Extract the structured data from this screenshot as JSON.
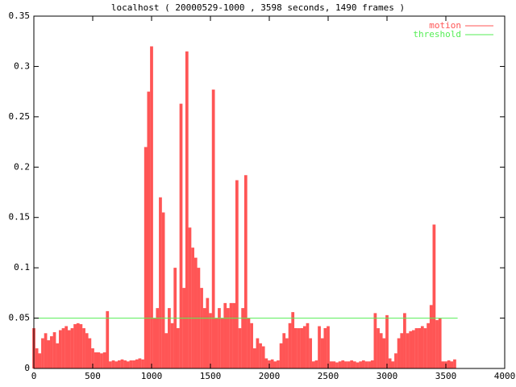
{
  "chart_data": {
    "type": "impulse",
    "title": "localhost ( 20000529-1000 , 3598 seconds, 1490 frames )",
    "xlim": [
      0,
      4000
    ],
    "xticks": [
      0,
      500,
      1000,
      1500,
      2000,
      2500,
      3000,
      3500,
      4000
    ],
    "ylim": [
      0,
      0.35
    ],
    "yticks": [
      0,
      0.05,
      0.1,
      0.15,
      0.2,
      0.25,
      0.3,
      0.35
    ],
    "legend": "top-right",
    "series": [
      {
        "name": "motion",
        "color": "#ff5555",
        "style": "impulses",
        "x": [
          0,
          25,
          50,
          75,
          100,
          125,
          150,
          175,
          200,
          225,
          250,
          275,
          300,
          325,
          350,
          375,
          400,
          425,
          450,
          475,
          500,
          525,
          550,
          575,
          600,
          625,
          650,
          675,
          700,
          725,
          750,
          775,
          800,
          825,
          850,
          875,
          900,
          925,
          950,
          975,
          1000,
          1025,
          1050,
          1075,
          1100,
          1125,
          1150,
          1175,
          1200,
          1225,
          1250,
          1275,
          1300,
          1325,
          1350,
          1375,
          1400,
          1425,
          1450,
          1475,
          1500,
          1525,
          1550,
          1575,
          1600,
          1625,
          1650,
          1675,
          1700,
          1725,
          1750,
          1775,
          1800,
          1825,
          1850,
          1875,
          1900,
          1925,
          1950,
          1975,
          2000,
          2025,
          2050,
          2075,
          2100,
          2125,
          2150,
          2175,
          2200,
          2225,
          2250,
          2275,
          2300,
          2325,
          2350,
          2375,
          2400,
          2425,
          2450,
          2475,
          2500,
          2525,
          2550,
          2575,
          2600,
          2625,
          2650,
          2675,
          2700,
          2725,
          2750,
          2775,
          2800,
          2825,
          2850,
          2875,
          2900,
          2925,
          2950,
          2975,
          3000,
          3025,
          3050,
          3075,
          3100,
          3125,
          3150,
          3175,
          3200,
          3225,
          3250,
          3275,
          3300,
          3325,
          3350,
          3375,
          3400,
          3425,
          3450,
          3475,
          3500,
          3525,
          3550,
          3575
        ],
        "values": [
          0.04,
          0.02,
          0.015,
          0.03,
          0.035,
          0.028,
          0.032,
          0.036,
          0.025,
          0.038,
          0.04,
          0.042,
          0.038,
          0.04,
          0.044,
          0.045,
          0.044,
          0.04,
          0.035,
          0.03,
          0.02,
          0.016,
          0.016,
          0.015,
          0.016,
          0.057,
          0.007,
          0.008,
          0.007,
          0.008,
          0.009,
          0.008,
          0.007,
          0.008,
          0.008,
          0.009,
          0.01,
          0.009,
          0.22,
          0.275,
          0.32,
          0.05,
          0.06,
          0.17,
          0.155,
          0.035,
          0.06,
          0.045,
          0.1,
          0.04,
          0.263,
          0.08,
          0.315,
          0.14,
          0.12,
          0.11,
          0.1,
          0.08,
          0.06,
          0.07,
          0.055,
          0.277,
          0.05,
          0.06,
          0.05,
          0.065,
          0.06,
          0.065,
          0.065,
          0.187,
          0.04,
          0.06,
          0.192,
          0.05,
          0.045,
          0.02,
          0.03,
          0.025,
          0.022,
          0.01,
          0.008,
          0.009,
          0.007,
          0.008,
          0.025,
          0.035,
          0.03,
          0.045,
          0.056,
          0.04,
          0.04,
          0.04,
          0.042,
          0.045,
          0.03,
          0.007,
          0.008,
          0.042,
          0.03,
          0.04,
          0.042,
          0.007,
          0.007,
          0.006,
          0.007,
          0.008,
          0.007,
          0.007,
          0.008,
          0.007,
          0.006,
          0.007,
          0.008,
          0.007,
          0.007,
          0.008,
          0.055,
          0.04,
          0.035,
          0.03,
          0.053,
          0.01,
          0.007,
          0.015,
          0.03,
          0.035,
          0.055,
          0.035,
          0.037,
          0.038,
          0.04,
          0.04,
          0.042,
          0.04,
          0.045,
          0.063,
          0.143,
          0.048,
          0.05,
          0.007,
          0.007,
          0.008,
          0.007,
          0.009
        ]
      },
      {
        "name": "threshold",
        "color": "#55ee55",
        "style": "line",
        "x": [
          0,
          3600
        ],
        "values": [
          0.05,
          0.05
        ]
      }
    ]
  }
}
